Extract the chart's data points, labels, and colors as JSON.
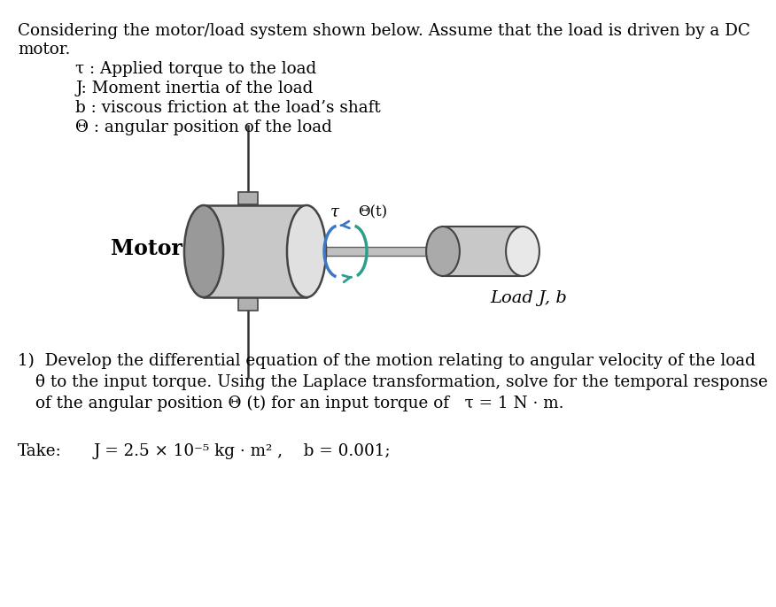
{
  "bg_color": "#ffffff",
  "text_color": "#000000",
  "title_line1": "Considering the motor/load system shown below. Assume that the load is driven by a DC",
  "title_line2": "motor.",
  "bullet1": "τ : Applied torque to the load",
  "bullet2": "J: Moment inertia of the load",
  "bullet3": "b : viscous friction at the load’s shaft",
  "bullet4": "Θ : angular position of the load",
  "label_motor": "Motor",
  "label_load": "Load J, b",
  "label_tau": "τ",
  "label_theta": "Θ(t)",
  "question1": "1)  Develop the differential equation of the motion relating to angular velocity of the load",
  "question2": "θ̇ to the input torque. Using the Laplace transformation, solve for the temporal response",
  "question3": "of the angular position Θ (t) for an input torque of   τ = 1 N · m.",
  "take_label": "Take:",
  "take_formula": "J = 2.5 × 10⁻⁵ kg · m² ,    b = 0.001;",
  "motor_fill": "#c8c8c8",
  "motor_edge": "#444444",
  "motor_front": "#e0e0e0",
  "motor_back": "#999999",
  "shaft_fill": "#c0c0c0",
  "load_fill": "#c8c8c8",
  "load_front": "#e8e8e8",
  "load_back": "#aaaaaa",
  "bracket_fill": "#b0b0b0",
  "arrow_blue": "#3a78c9",
  "arrow_teal": "#2e9e8a",
  "pole_color": "#333333"
}
